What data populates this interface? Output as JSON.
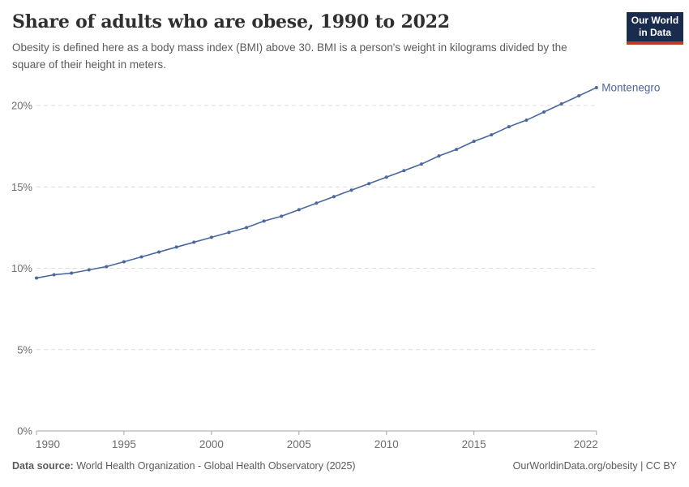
{
  "header": {
    "title": "Share of adults who are obese, 1990 to 2022",
    "subtitle": "Obesity is defined here as a body mass index (BMI) above 30. BMI is a person's weight in kilograms divided by the square of their height in meters.",
    "logo": {
      "line1": "Our World",
      "line2": "in Data",
      "bg_color": "#1a2c4e",
      "accent_color": "#bf3728",
      "text_color": "#ffffff"
    }
  },
  "chart_data": {
    "type": "line",
    "title": "Share of adults who are obese, 1990 to 2022",
    "xlabel": "",
    "ylabel": "",
    "xlim": [
      1990,
      2022
    ],
    "ylim": [
      0,
      21.5
    ],
    "grid": "horizontal-dashed",
    "legend_position": "end-of-line-label",
    "x_ticks": [
      1990,
      1995,
      2000,
      2005,
      2010,
      2015,
      2022
    ],
    "y_ticks": [
      {
        "value": 0,
        "label": "0%"
      },
      {
        "value": 5,
        "label": "5%"
      },
      {
        "value": 10,
        "label": "10%"
      },
      {
        "value": 15,
        "label": "15%"
      },
      {
        "value": 20,
        "label": "20%"
      }
    ],
    "series": [
      {
        "name": "Montenegro",
        "color": "#4a67a0",
        "x": [
          1990,
          1991,
          1992,
          1993,
          1994,
          1995,
          1996,
          1997,
          1998,
          1999,
          2000,
          2001,
          2002,
          2003,
          2004,
          2005,
          2006,
          2007,
          2008,
          2009,
          2010,
          2011,
          2012,
          2013,
          2014,
          2015,
          2016,
          2017,
          2018,
          2019,
          2020,
          2021,
          2022
        ],
        "values": [
          9.4,
          9.6,
          9.7,
          9.9,
          10.1,
          10.4,
          10.7,
          11.0,
          11.3,
          11.6,
          11.9,
          12.2,
          12.5,
          12.9,
          13.2,
          13.6,
          14.0,
          14.4,
          14.8,
          15.2,
          15.6,
          16.0,
          16.4,
          16.9,
          17.3,
          17.8,
          18.2,
          18.7,
          19.1,
          19.6,
          20.1,
          20.6,
          21.1
        ]
      }
    ],
    "colors": {
      "gridline": "#dcdcdc",
      "axis_line": "#a5a5a5",
      "tick_label": "#6e6e6e"
    }
  },
  "footer": {
    "data_source_label": "Data source:",
    "data_source_value": " World Health Organization - Global Health Observatory (2025)",
    "credit": "OurWorldinData.org/obesity | CC BY"
  }
}
